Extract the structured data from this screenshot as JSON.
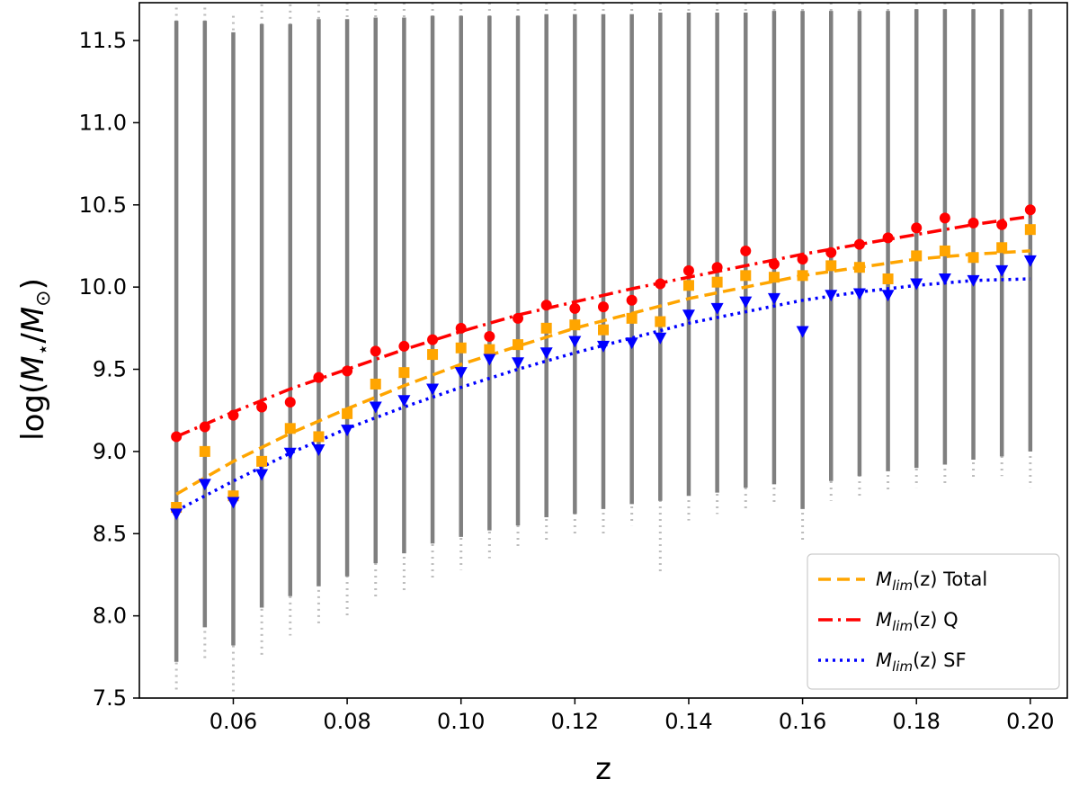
{
  "chart_data": {
    "type": "scatter",
    "title": "",
    "xlabel": "z",
    "ylabel_parts": {
      "pre": "log(",
      "m1": "M",
      "sub1": "⋆",
      "slash": "/",
      "m2": "M",
      "sub2": "⊙",
      "post": ")"
    },
    "xlim": [
      0.0435,
      0.2065
    ],
    "ylim": [
      7.5,
      11.73
    ],
    "xticks": [
      0.06,
      0.08,
      0.1,
      0.12,
      0.14,
      0.16,
      0.18,
      0.2
    ],
    "xtick_labels": [
      "0.06",
      "0.08",
      "0.10",
      "0.12",
      "0.14",
      "0.16",
      "0.18",
      "0.20"
    ],
    "yticks": [
      7.5,
      8.0,
      8.5,
      9.0,
      9.5,
      10.0,
      10.5,
      11.0,
      11.5
    ],
    "ytick_labels": [
      "7.5",
      "8.0",
      "8.5",
      "9.0",
      "9.5",
      "10.0",
      "10.5",
      "11.0",
      "11.5"
    ],
    "grid": false,
    "legend_position": "lower-right",
    "background_columns": {
      "color": "#7f7f7f",
      "x": [
        0.05,
        0.055,
        0.06,
        0.065,
        0.07,
        0.075,
        0.08,
        0.085,
        0.09,
        0.095,
        0.1,
        0.105,
        0.11,
        0.115,
        0.12,
        0.125,
        0.13,
        0.135,
        0.14,
        0.145,
        0.15,
        0.155,
        0.16,
        0.165,
        0.17,
        0.175,
        0.18,
        0.185,
        0.19,
        0.195,
        0.2
      ],
      "dense_low": [
        7.72,
        7.93,
        7.82,
        8.05,
        8.12,
        8.18,
        8.24,
        8.32,
        8.38,
        8.44,
        8.48,
        8.52,
        8.55,
        8.6,
        8.62,
        8.65,
        8.68,
        8.7,
        8.73,
        8.75,
        8.78,
        8.8,
        8.65,
        8.82,
        8.85,
        8.88,
        8.9,
        8.92,
        8.95,
        8.97,
        9.0
      ],
      "sparse_low": [
        7.55,
        7.72,
        7.53,
        7.75,
        7.88,
        7.95,
        8.0,
        8.1,
        8.15,
        8.22,
        8.28,
        8.35,
        8.4,
        8.45,
        8.48,
        8.5,
        8.55,
        8.25,
        8.58,
        8.62,
        8.65,
        8.68,
        8.45,
        8.7,
        8.72,
        8.75,
        8.78,
        8.8,
        8.82,
        8.85,
        8.78
      ],
      "dense_high": [
        11.62,
        11.62,
        11.55,
        11.6,
        11.6,
        11.63,
        11.63,
        11.64,
        11.64,
        11.65,
        11.65,
        11.65,
        11.65,
        11.66,
        11.66,
        11.66,
        11.66,
        11.67,
        11.67,
        11.67,
        11.67,
        11.68,
        11.68,
        11.68,
        11.68,
        11.68,
        11.69,
        11.69,
        11.69,
        11.69,
        11.69
      ],
      "sparse_high": [
        11.7,
        11.7,
        11.65,
        11.72,
        11.72,
        11.72,
        11.73,
        11.73,
        11.73,
        11.73,
        11.73,
        11.73,
        11.73,
        11.73,
        11.73,
        11.73,
        11.73,
        11.73,
        11.73,
        11.73,
        11.73,
        11.73,
        11.73,
        11.73,
        11.73,
        11.73,
        11.73,
        11.73,
        11.73,
        11.73,
        11.73
      ]
    },
    "series": [
      {
        "name_parts": {
          "m": "M",
          "sub": "lim",
          "arg": "(z)",
          "tag": " Total"
        },
        "color": "#ffa500",
        "marker": "square",
        "line_style": "dashed",
        "x": [
          0.05,
          0.055,
          0.06,
          0.065,
          0.07,
          0.075,
          0.08,
          0.085,
          0.09,
          0.095,
          0.1,
          0.105,
          0.11,
          0.115,
          0.12,
          0.125,
          0.13,
          0.135,
          0.14,
          0.145,
          0.15,
          0.155,
          0.16,
          0.165,
          0.17,
          0.175,
          0.18,
          0.185,
          0.19,
          0.195,
          0.2
        ],
        "values": [
          8.66,
          9.0,
          8.73,
          8.94,
          9.14,
          9.09,
          9.23,
          9.41,
          9.48,
          9.59,
          9.63,
          9.62,
          9.65,
          9.75,
          9.77,
          9.74,
          9.81,
          9.79,
          10.01,
          10.03,
          10.07,
          10.06,
          10.07,
          10.13,
          10.12,
          10.05,
          10.19,
          10.22,
          10.18,
          10.24,
          10.35
        ],
        "fit_x": [
          0.05,
          0.06,
          0.07,
          0.08,
          0.09,
          0.1,
          0.11,
          0.12,
          0.13,
          0.14,
          0.15,
          0.16,
          0.17,
          0.18,
          0.19,
          0.2
        ],
        "fit_y": [
          8.74,
          8.94,
          9.11,
          9.26,
          9.4,
          9.53,
          9.64,
          9.75,
          9.84,
          9.93,
          10.0,
          10.07,
          10.12,
          10.17,
          10.2,
          10.22
        ]
      },
      {
        "name_parts": {
          "m": "M",
          "sub": "lim",
          "arg": "(z)",
          "tag": " Q"
        },
        "color": "#ff0000",
        "marker": "circle",
        "line_style": "dashdot",
        "x": [
          0.05,
          0.055,
          0.06,
          0.065,
          0.07,
          0.075,
          0.08,
          0.085,
          0.09,
          0.095,
          0.1,
          0.105,
          0.11,
          0.115,
          0.12,
          0.125,
          0.13,
          0.135,
          0.14,
          0.145,
          0.15,
          0.155,
          0.16,
          0.165,
          0.17,
          0.175,
          0.18,
          0.185,
          0.19,
          0.195,
          0.2
        ],
        "values": [
          9.09,
          9.15,
          9.22,
          9.27,
          9.3,
          9.45,
          9.49,
          9.61,
          9.64,
          9.68,
          9.75,
          9.7,
          9.81,
          9.89,
          9.87,
          9.88,
          9.92,
          10.02,
          10.1,
          10.12,
          10.22,
          10.14,
          10.17,
          10.21,
          10.26,
          10.3,
          10.36,
          10.42,
          10.39,
          10.38,
          10.47
        ],
        "fit_x": [
          0.05,
          0.06,
          0.07,
          0.08,
          0.09,
          0.1,
          0.11,
          0.12,
          0.13,
          0.14,
          0.15,
          0.16,
          0.17,
          0.18,
          0.19,
          0.2
        ],
        "fit_y": [
          9.09,
          9.24,
          9.38,
          9.5,
          9.62,
          9.73,
          9.83,
          9.91,
          9.99,
          10.06,
          10.13,
          10.2,
          10.26,
          10.32,
          10.38,
          10.43
        ]
      },
      {
        "name_parts": {
          "m": "M",
          "sub": "lim",
          "arg": "(z)",
          "tag": " SF"
        },
        "color": "#0000ff",
        "marker": "triangle-down",
        "line_style": "dotted",
        "x": [
          0.05,
          0.055,
          0.06,
          0.065,
          0.07,
          0.075,
          0.08,
          0.085,
          0.09,
          0.095,
          0.1,
          0.105,
          0.11,
          0.115,
          0.12,
          0.125,
          0.13,
          0.135,
          0.14,
          0.145,
          0.15,
          0.155,
          0.16,
          0.165,
          0.17,
          0.175,
          0.18,
          0.185,
          0.19,
          0.195,
          0.2
        ],
        "values": [
          8.62,
          8.8,
          8.69,
          8.86,
          8.99,
          9.01,
          9.13,
          9.27,
          9.31,
          9.38,
          9.48,
          9.56,
          9.54,
          9.6,
          9.67,
          9.64,
          9.66,
          9.69,
          9.83,
          9.87,
          9.91,
          9.93,
          9.73,
          9.95,
          9.96,
          9.95,
          10.02,
          10.05,
          10.04,
          10.1,
          10.16
        ],
        "fit_x": [
          0.05,
          0.06,
          0.07,
          0.08,
          0.09,
          0.1,
          0.11,
          0.12,
          0.13,
          0.14,
          0.15,
          0.16,
          0.17,
          0.18,
          0.19,
          0.2
        ],
        "fit_y": [
          8.64,
          8.82,
          8.99,
          9.14,
          9.27,
          9.39,
          9.5,
          9.6,
          9.69,
          9.78,
          9.85,
          9.92,
          9.97,
          10.01,
          10.04,
          10.05
        ]
      }
    ]
  }
}
